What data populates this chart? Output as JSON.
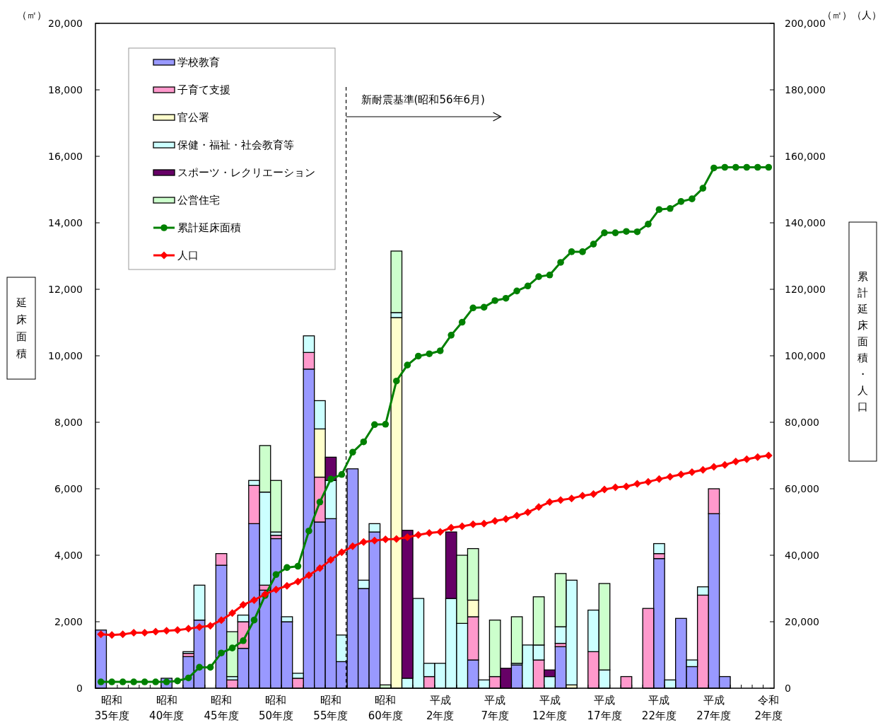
{
  "chart_data": {
    "type": "bar",
    "stacked": true,
    "legend": "top left",
    "grid": false,
    "ylabel": "延床面積",
    "y2label": "累計延床面積・人口",
    "annotations": [
      "（㎡）",
      "（㎡）（人）",
      "新耐震基準(昭和56年6月)"
    ],
    "categories": [
      null,
      "昭和\n35年度",
      null,
      null,
      null,
      null,
      "昭和\n40年度",
      null,
      null,
      null,
      null,
      "昭和\n45年度",
      null,
      null,
      null,
      null,
      "昭和\n50年度",
      null,
      null,
      null,
      null,
      "昭和\n55年度",
      null,
      null,
      null,
      null,
      "昭和\n60年度",
      null,
      null,
      null,
      null,
      "平成\n2年度",
      null,
      null,
      null,
      null,
      "平成\n7年度",
      null,
      null,
      null,
      null,
      "平成\n12年度",
      null,
      null,
      null,
      null,
      "平成\n17年度",
      null,
      null,
      null,
      null,
      "平成\n22年度",
      null,
      null,
      null,
      null,
      "平成\n27年度",
      null,
      null,
      null,
      null,
      "令和\n2年度"
    ],
    "ylim": [
      0,
      20000
    ],
    "yticks": [
      {
        "value": 0,
        "label": "0"
      },
      {
        "value": 2000,
        "label": "2,000"
      },
      {
        "value": 4000,
        "label": "4,000"
      },
      {
        "value": 6000,
        "label": "6,000"
      },
      {
        "value": 8000,
        "label": "8,000"
      },
      {
        "value": 10000,
        "label": "10,000"
      },
      {
        "value": 12000,
        "label": "12,000"
      },
      {
        "value": 14000,
        "label": "14,000"
      },
      {
        "value": 16000,
        "label": "16,000"
      },
      {
        "value": 18000,
        "label": "18,000"
      },
      {
        "value": 20000,
        "label": "20,000"
      }
    ],
    "y2lim": [
      0,
      200000
    ],
    "y2ticks": [
      {
        "value": 0,
        "label": "0"
      },
      {
        "value": 20000,
        "label": "20,000"
      },
      {
        "value": 40000,
        "label": "40,000"
      },
      {
        "value": 60000,
        "label": "60,000"
      },
      {
        "value": 80000,
        "label": "80,000"
      },
      {
        "value": 100000,
        "label": "100,000"
      },
      {
        "value": 120000,
        "label": "120,000"
      },
      {
        "value": 140000,
        "label": "140,000"
      },
      {
        "value": 160000,
        "label": "160,000"
      },
      {
        "value": 180000,
        "label": "180,000"
      },
      {
        "value": 200000,
        "label": "200,000"
      }
    ],
    "series": [
      {
        "name": "学校教育",
        "color": "#9999ff",
        "values": [
          1750,
          null,
          null,
          null,
          null,
          null,
          300,
          null,
          950,
          2050,
          null,
          3700,
          null,
          1200,
          4950,
          2950,
          4500,
          2000,
          null,
          9600,
          5000,
          5100,
          800,
          6600,
          3000,
          4700,
          null,
          null,
          null,
          null,
          null,
          null,
          null,
          null,
          850,
          null,
          null,
          null,
          700,
          null,
          null,
          null,
          1250,
          null,
          null,
          null,
          null,
          null,
          null,
          null,
          null,
          3900,
          null,
          2100,
          650,
          null,
          5250,
          350,
          null,
          null,
          null,
          null
        ]
      },
      {
        "name": "子育て支援",
        "color": "#ff99cc",
        "values": [
          null,
          null,
          null,
          null,
          null,
          null,
          null,
          null,
          100,
          null,
          null,
          350,
          250,
          800,
          1150,
          150,
          100,
          null,
          300,
          500,
          1350,
          null,
          null,
          null,
          null,
          null,
          null,
          null,
          null,
          null,
          350,
          null,
          null,
          null,
          1300,
          null,
          350,
          null,
          null,
          null,
          850,
          null,
          100,
          null,
          null,
          1100,
          null,
          null,
          350,
          null,
          2400,
          150,
          null,
          null,
          null,
          2800,
          750,
          null,
          null,
          null,
          null,
          null
        ]
      },
      {
        "name": "官公署",
        "color": "#ffffcc",
        "values": [
          null,
          null,
          null,
          null,
          null,
          null,
          null,
          null,
          null,
          null,
          null,
          null,
          null,
          null,
          null,
          null,
          null,
          null,
          null,
          null,
          1450,
          null,
          null,
          null,
          null,
          null,
          null,
          11150,
          null,
          null,
          null,
          null,
          null,
          null,
          500,
          null,
          null,
          null,
          null,
          null,
          null,
          null,
          null,
          100,
          null,
          null,
          null,
          null,
          null,
          null,
          null,
          null,
          null,
          null,
          null,
          null,
          null,
          null,
          null,
          null,
          null,
          null
        ]
      },
      {
        "name": "保健・福祉・社会教育等",
        "color": "#ccffff",
        "values": [
          null,
          null,
          null,
          null,
          null,
          null,
          null,
          null,
          50,
          1050,
          null,
          null,
          100,
          200,
          150,
          2800,
          100,
          150,
          150,
          500,
          850,
          1150,
          800,
          null,
          250,
          250,
          null,
          150,
          300,
          2700,
          400,
          750,
          2700,
          1950,
          null,
          250,
          null,
          null,
          50,
          1300,
          450,
          350,
          500,
          3150,
          null,
          1250,
          550,
          null,
          null,
          null,
          null,
          300,
          250,
          null,
          200,
          250,
          null,
          null,
          null,
          null,
          null,
          null
        ]
      },
      {
        "name": "スポーツ・レクリエーション",
        "color": "#660066",
        "values": [
          null,
          null,
          null,
          null,
          null,
          null,
          null,
          null,
          null,
          null,
          null,
          null,
          null,
          null,
          null,
          null,
          null,
          null,
          null,
          null,
          null,
          700,
          null,
          null,
          null,
          null,
          null,
          null,
          4450,
          null,
          null,
          null,
          2000,
          null,
          null,
          null,
          null,
          600,
          null,
          null,
          null,
          200,
          null,
          null,
          null,
          null,
          null,
          null,
          null,
          null,
          null,
          null,
          null,
          null,
          null,
          null,
          null,
          null,
          null,
          null,
          null,
          null
        ]
      },
      {
        "name": "公営住宅",
        "color": "#ccffcc",
        "values": [
          null,
          null,
          null,
          null,
          null,
          null,
          null,
          null,
          null,
          null,
          null,
          null,
          1350,
          null,
          null,
          1400,
          1550,
          null,
          null,
          null,
          null,
          null,
          null,
          null,
          null,
          null,
          100,
          1850,
          null,
          null,
          null,
          null,
          null,
          2050,
          1550,
          null,
          1700,
          null,
          1400,
          null,
          1450,
          null,
          1600,
          null,
          null,
          null,
          2600,
          null,
          null,
          null,
          null,
          null,
          null,
          null,
          null,
          null,
          null,
          null,
          null,
          null,
          null,
          null
        ]
      },
      {
        "name": "累計延床面積",
        "type": "line",
        "axis": "y2",
        "marker": "circle",
        "color": "#008000",
        "values": [
          1900,
          1900,
          1900,
          1900,
          1900,
          1900,
          1900,
          2200,
          3100,
          6300,
          6300,
          10600,
          12100,
          14300,
          20500,
          27900,
          34200,
          36300,
          36700,
          47300,
          56000,
          62900,
          64300,
          71000,
          74100,
          79300,
          79400,
          92400,
          97200,
          99900,
          100600,
          101500,
          106200,
          110100,
          114400,
          114600,
          116600,
          117300,
          119500,
          121000,
          123800,
          124300,
          128100,
          131300,
          131300,
          133600,
          137000,
          137000,
          137400,
          137300,
          139600,
          144000,
          144300,
          146400,
          147200,
          150400,
          156500,
          156700,
          156700,
          156700,
          156700,
          156700
        ]
      },
      {
        "name": "人口",
        "type": "line",
        "axis": "y2",
        "marker": "diamond",
        "color": "#ff0000",
        "values": [
          16200,
          16000,
          16200,
          16700,
          16700,
          17000,
          17300,
          17500,
          17900,
          18400,
          18800,
          20500,
          22600,
          25100,
          26500,
          28300,
          29700,
          30800,
          32100,
          34000,
          36100,
          38600,
          40900,
          42700,
          44000,
          44400,
          44800,
          44900,
          45400,
          46100,
          46700,
          47000,
          48300,
          48700,
          49300,
          49500,
          50300,
          50900,
          51900,
          52900,
          54500,
          56000,
          56600,
          57100,
          57900,
          58400,
          59800,
          60400,
          60700,
          61500,
          62100,
          62900,
          63600,
          64300,
          65000,
          65700,
          66600,
          67200,
          68200,
          68900,
          69500,
          70000
        ]
      }
    ]
  }
}
